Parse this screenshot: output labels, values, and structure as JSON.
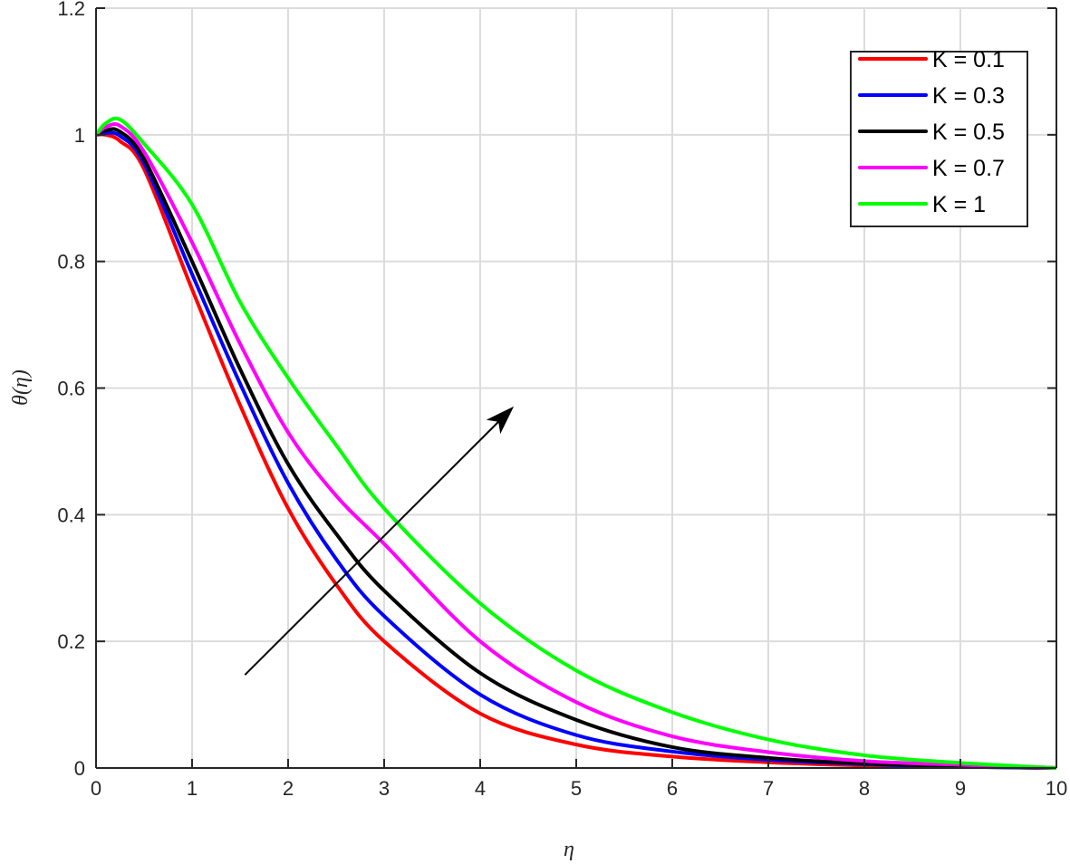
{
  "chart_data": {
    "type": "line",
    "title": "",
    "xlabel": "η",
    "ylabel": "θ(η)",
    "xlim": [
      0,
      10
    ],
    "ylim": [
      0,
      1.2
    ],
    "xticks": [
      "0",
      "1",
      "2",
      "3",
      "4",
      "5",
      "6",
      "7",
      "8",
      "9",
      "10"
    ],
    "yticks": [
      "0",
      "0.2",
      "0.4",
      "0.6",
      "0.8",
      "1",
      "1.2"
    ],
    "grid": true,
    "legend_position": "top-right",
    "x": [
      0,
      0.1,
      0.25,
      0.5,
      1,
      1.5,
      2,
      2.5,
      3,
      4,
      5,
      6,
      7,
      8,
      9,
      10
    ],
    "series": [
      {
        "name": "K = 0.1",
        "color": "#ff0000",
        "values": [
          1,
          1.0,
          0.99,
          0.946,
          0.756,
          0.573,
          0.41,
          0.29,
          0.2,
          0.086,
          0.037,
          0.018,
          0.009,
          0.004,
          0.002,
          0
        ]
      },
      {
        "name": "K = 0.3",
        "color": "#0000ff",
        "values": [
          1,
          1.003,
          0.998,
          0.955,
          0.78,
          0.607,
          0.45,
          0.33,
          0.24,
          0.116,
          0.052,
          0.026,
          0.013,
          0.006,
          0.002,
          0
        ]
      },
      {
        "name": "K = 0.5",
        "color": "#000000",
        "values": [
          1,
          1.007,
          1.005,
          0.962,
          0.8,
          0.63,
          0.48,
          0.37,
          0.28,
          0.15,
          0.076,
          0.033,
          0.016,
          0.007,
          0.003,
          0
        ]
      },
      {
        "name": "K = 0.7",
        "color": "#ff00ff",
        "values": [
          1,
          1.012,
          1.014,
          0.973,
          0.83,
          0.67,
          0.53,
          0.43,
          0.354,
          0.2,
          0.104,
          0.05,
          0.025,
          0.011,
          0.005,
          0
        ]
      },
      {
        "name": "K = 1",
        "color": "#00ff00",
        "values": [
          1,
          1.018,
          1.024,
          0.986,
          0.89,
          0.736,
          0.616,
          0.51,
          0.41,
          0.26,
          0.154,
          0.088,
          0.045,
          0.02,
          0.008,
          0
        ]
      }
    ],
    "annotations": [
      {
        "type": "arrow",
        "from": [
          1.55,
          0.147
        ],
        "to": [
          4.35,
          0.571
        ],
        "color": "#000000"
      }
    ]
  }
}
